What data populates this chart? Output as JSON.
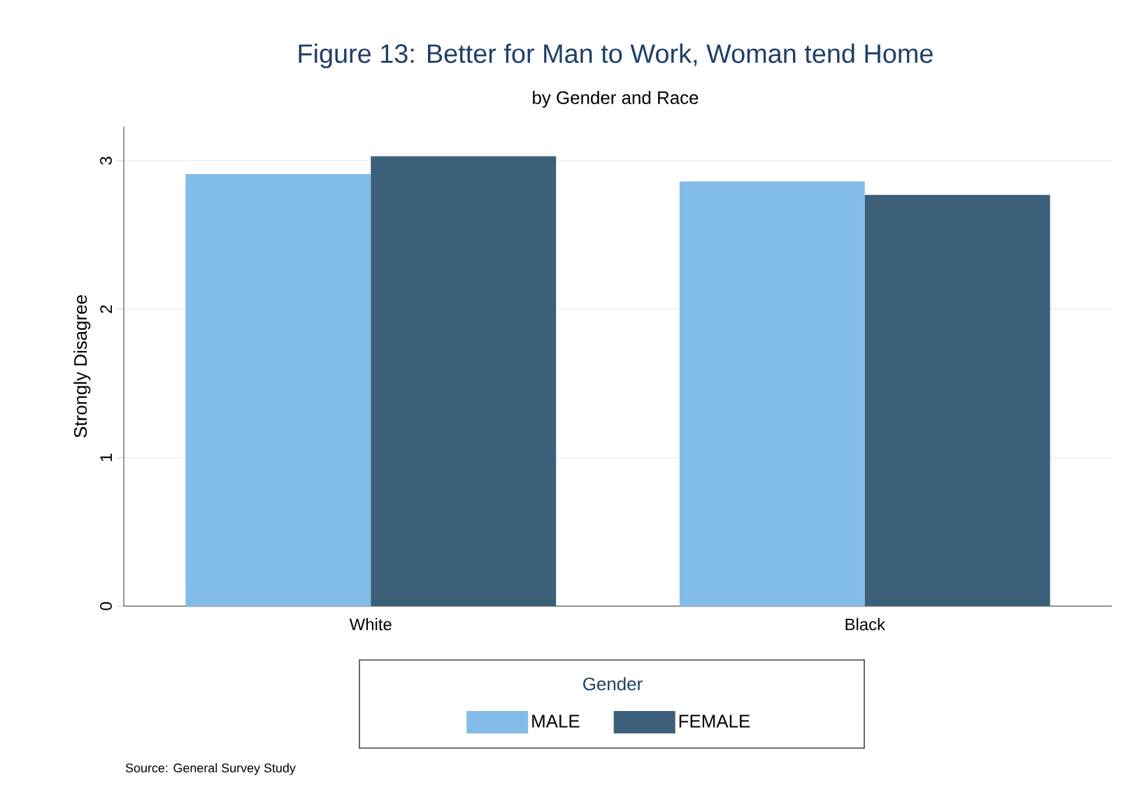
{
  "chart_data": {
    "type": "bar",
    "title": "Figure 13: Better for Man to Work, Woman tend Home",
    "subtitle": "by Gender and Race",
    "ylabel": "Strongly Disagree",
    "legend_title": "Gender",
    "categories": [
      "White",
      "Black"
    ],
    "series": [
      {
        "name": "MALE",
        "color": "#82bde8",
        "values": [
          2.91,
          2.86
        ]
      },
      {
        "name": "FEMALE",
        "color": "#3c6079",
        "values": [
          3.03,
          2.77
        ]
      }
    ],
    "ylim": [
      0,
      3.23
    ],
    "yticks": [
      0,
      1,
      2,
      3
    ],
    "grid": "y",
    "legend": "bottom",
    "annotations": [
      "Source: General Survey Study"
    ]
  }
}
